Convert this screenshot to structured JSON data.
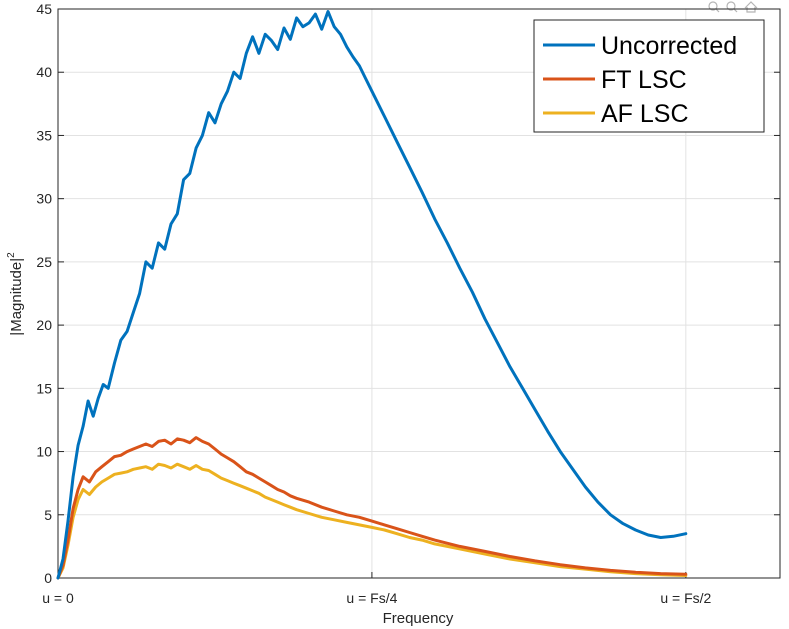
{
  "window": {
    "toolbar_icons": [
      "zoom-in-icon",
      "zoom-out-icon",
      "home-icon"
    ]
  },
  "colors": {
    "uncorrected": "#0072BD",
    "ft_lsc": "#D95319",
    "af_lsc": "#EDB120",
    "grid": "#e2e2e2",
    "axis": "#262626"
  },
  "chart_data": {
    "type": "line",
    "title": "",
    "xlabel": "Frequency",
    "ylabel": "|Magnitude|",
    "ylabel_superscript": "2",
    "xlim": [
      0,
      0.575
    ],
    "ylim": [
      0,
      45
    ],
    "x_ticks": [
      0,
      0.25,
      0.5
    ],
    "x_tick_labels": [
      "u = 0",
      "u = Fs/4",
      "u = Fs/2"
    ],
    "y_ticks": [
      0,
      5,
      10,
      15,
      20,
      25,
      30,
      35,
      40,
      45
    ],
    "y_tick_labels": [
      "0",
      "5",
      "10",
      "15",
      "20",
      "25",
      "30",
      "35",
      "40",
      "45"
    ],
    "grid": true,
    "legend_position": "top-right",
    "series": [
      {
        "name": "Uncorrected",
        "x": [
          0,
          0.004,
          0.008,
          0.012,
          0.016,
          0.02,
          0.024,
          0.028,
          0.032,
          0.036,
          0.04,
          0.045,
          0.05,
          0.055,
          0.06,
          0.065,
          0.07,
          0.075,
          0.08,
          0.085,
          0.09,
          0.095,
          0.1,
          0.105,
          0.11,
          0.115,
          0.12,
          0.125,
          0.13,
          0.135,
          0.14,
          0.145,
          0.15,
          0.155,
          0.16,
          0.165,
          0.17,
          0.175,
          0.18,
          0.185,
          0.19,
          0.195,
          0.2,
          0.205,
          0.21,
          0.215,
          0.22,
          0.225,
          0.23,
          0.235,
          0.24,
          0.245,
          0.25,
          0.26,
          0.27,
          0.28,
          0.29,
          0.3,
          0.31,
          0.32,
          0.33,
          0.34,
          0.35,
          0.36,
          0.37,
          0.38,
          0.39,
          0.4,
          0.41,
          0.42,
          0.43,
          0.44,
          0.45,
          0.46,
          0.47,
          0.48,
          0.49,
          0.5
        ],
        "values": [
          0,
          1.5,
          4.5,
          8.0,
          10.5,
          12.0,
          14.0,
          12.8,
          14.2,
          15.3,
          15.0,
          17.0,
          18.8,
          19.5,
          21.0,
          22.5,
          25.0,
          24.5,
          26.5,
          26.0,
          28.0,
          28.8,
          31.5,
          32.0,
          34.0,
          35.0,
          36.8,
          36.0,
          37.5,
          38.5,
          40.0,
          39.5,
          41.5,
          42.8,
          41.5,
          43.0,
          42.5,
          41.8,
          43.5,
          42.6,
          44.3,
          43.6,
          43.9,
          44.6,
          43.4,
          44.8,
          43.6,
          43.0,
          42.0,
          41.2,
          40.5,
          39.5,
          38.5,
          36.5,
          34.5,
          32.5,
          30.5,
          28.4,
          26.5,
          24.5,
          22.6,
          20.5,
          18.6,
          16.7,
          15.0,
          13.3,
          11.6,
          10.0,
          8.6,
          7.2,
          6.0,
          5.0,
          4.3,
          3.8,
          3.4,
          3.2,
          3.3,
          3.5
        ]
      },
      {
        "name": "FT LSC",
        "x": [
          0,
          0.004,
          0.008,
          0.012,
          0.016,
          0.02,
          0.025,
          0.03,
          0.035,
          0.04,
          0.045,
          0.05,
          0.055,
          0.06,
          0.065,
          0.07,
          0.075,
          0.08,
          0.085,
          0.09,
          0.095,
          0.1,
          0.105,
          0.11,
          0.115,
          0.12,
          0.125,
          0.13,
          0.135,
          0.14,
          0.145,
          0.15,
          0.155,
          0.16,
          0.165,
          0.17,
          0.175,
          0.18,
          0.185,
          0.19,
          0.2,
          0.21,
          0.22,
          0.23,
          0.24,
          0.25,
          0.26,
          0.27,
          0.28,
          0.29,
          0.3,
          0.32,
          0.34,
          0.36,
          0.38,
          0.4,
          0.42,
          0.44,
          0.46,
          0.48,
          0.5
        ],
        "values": [
          0,
          1.0,
          3.0,
          5.5,
          7.0,
          8.0,
          7.6,
          8.4,
          8.8,
          9.2,
          9.6,
          9.7,
          10.0,
          10.2,
          10.4,
          10.6,
          10.4,
          10.8,
          10.9,
          10.6,
          11.0,
          10.9,
          10.7,
          11.1,
          10.8,
          10.6,
          10.2,
          9.8,
          9.5,
          9.2,
          8.8,
          8.4,
          8.2,
          7.9,
          7.6,
          7.3,
          7.0,
          6.8,
          6.5,
          6.3,
          6.0,
          5.6,
          5.3,
          5.0,
          4.8,
          4.5,
          4.2,
          3.9,
          3.6,
          3.3,
          3.0,
          2.5,
          2.1,
          1.7,
          1.35,
          1.05,
          0.8,
          0.6,
          0.45,
          0.35,
          0.3
        ]
      },
      {
        "name": "AF LSC",
        "x": [
          0,
          0.004,
          0.008,
          0.012,
          0.016,
          0.02,
          0.025,
          0.03,
          0.035,
          0.04,
          0.045,
          0.05,
          0.055,
          0.06,
          0.065,
          0.07,
          0.075,
          0.08,
          0.085,
          0.09,
          0.095,
          0.1,
          0.105,
          0.11,
          0.115,
          0.12,
          0.125,
          0.13,
          0.135,
          0.14,
          0.145,
          0.15,
          0.155,
          0.16,
          0.165,
          0.17,
          0.175,
          0.18,
          0.185,
          0.19,
          0.2,
          0.21,
          0.22,
          0.23,
          0.24,
          0.25,
          0.26,
          0.27,
          0.28,
          0.29,
          0.3,
          0.32,
          0.34,
          0.36,
          0.38,
          0.4,
          0.42,
          0.44,
          0.46,
          0.48,
          0.5
        ],
        "values": [
          0,
          0.8,
          2.6,
          4.8,
          6.2,
          7.0,
          6.6,
          7.2,
          7.6,
          7.9,
          8.2,
          8.3,
          8.4,
          8.6,
          8.7,
          8.8,
          8.6,
          9.0,
          8.9,
          8.7,
          9.0,
          8.8,
          8.6,
          8.9,
          8.6,
          8.5,
          8.2,
          7.9,
          7.7,
          7.5,
          7.3,
          7.1,
          6.9,
          6.7,
          6.4,
          6.2,
          6.0,
          5.8,
          5.6,
          5.4,
          5.1,
          4.8,
          4.6,
          4.4,
          4.2,
          4.0,
          3.8,
          3.5,
          3.2,
          3.0,
          2.7,
          2.3,
          1.9,
          1.5,
          1.2,
          0.9,
          0.7,
          0.5,
          0.35,
          0.25,
          0.2
        ]
      }
    ]
  }
}
